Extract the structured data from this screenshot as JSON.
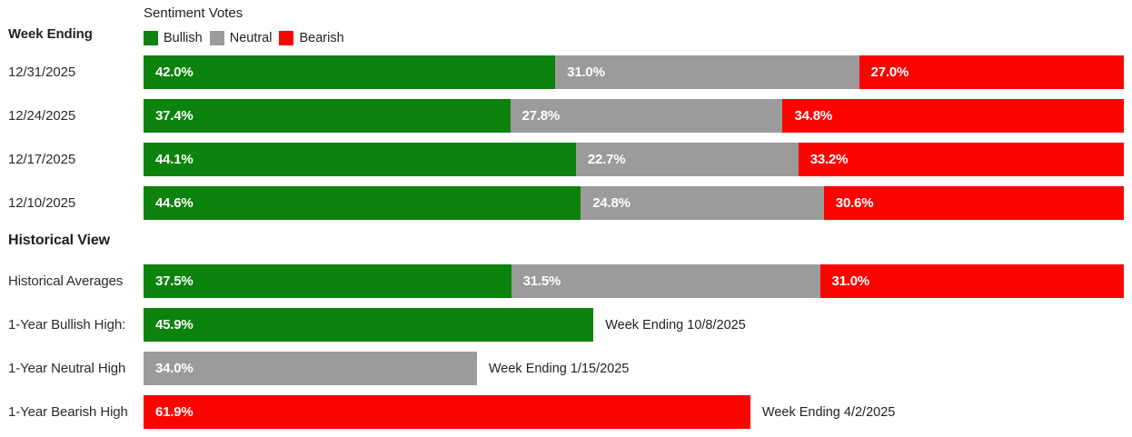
{
  "header": {
    "week_ending_label": "Week Ending",
    "title": "Sentiment Votes"
  },
  "sections": {
    "historical_title": "Historical View"
  },
  "colors": {
    "bullish": "#0c830c",
    "neutral": "#9b9b9b",
    "bearish": "#fb0400",
    "text": "#2b2b2b"
  },
  "chart_data": {
    "type": "bar",
    "orientation": "horizontal",
    "stacked": true,
    "title": "Sentiment Votes",
    "xlim": [
      0,
      100
    ],
    "unit": "%",
    "legend_position": "top",
    "series": [
      "Bullish",
      "Neutral",
      "Bearish"
    ],
    "series_colors": [
      "#0c830c",
      "#9b9b9b",
      "#fb0400"
    ],
    "weekly_rows": [
      {
        "label": "12/31/2025",
        "values": [
          42.0,
          31.0,
          27.0
        ]
      },
      {
        "label": "12/24/2025",
        "values": [
          37.4,
          27.8,
          34.8
        ]
      },
      {
        "label": "12/17/2025",
        "values": [
          44.1,
          22.7,
          33.2
        ]
      },
      {
        "label": "12/10/2025",
        "values": [
          44.6,
          24.8,
          30.6
        ]
      }
    ],
    "historical_rows": [
      {
        "label": "Historical Averages",
        "values": [
          37.5,
          31.5,
          31.0
        ]
      },
      {
        "label": "1-Year Bullish High:",
        "series": "Bullish",
        "value": 45.9,
        "annotation": "Week Ending 10/8/2025"
      },
      {
        "label": "1-Year Neutral High",
        "series": "Neutral",
        "value": 34.0,
        "annotation": "Week Ending 1/15/2025"
      },
      {
        "label": "1-Year Bearish High",
        "series": "Bearish",
        "value": 61.9,
        "annotation": "Week Ending 4/2/2025"
      }
    ]
  }
}
